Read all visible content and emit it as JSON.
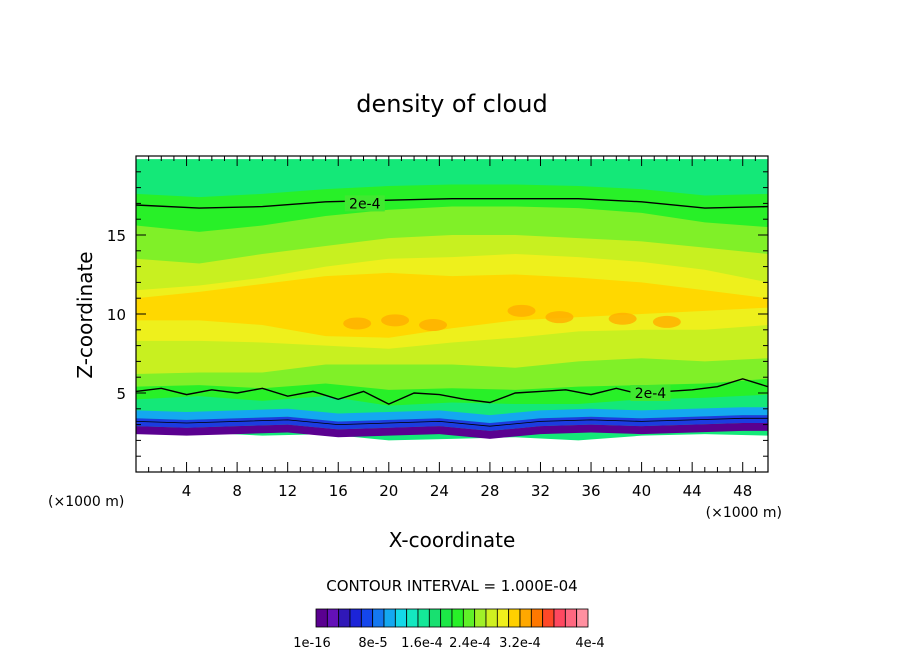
{
  "chart_data": {
    "type": "heatmap",
    "title": "density of cloud",
    "xlabel": "X-coordinate",
    "ylabel": "Z-coordinate",
    "x_unit_label_left": "(×1000 m)",
    "x_unit_label_right": "(×1000 m)",
    "xlim": [
      0,
      50
    ],
    "ylim": [
      0,
      20
    ],
    "x_ticks": [
      4,
      8,
      12,
      16,
      20,
      24,
      28,
      32,
      36,
      40,
      44,
      48
    ],
    "y_ticks": [
      5,
      10,
      15
    ],
    "contour_interval_text": "CONTOUR INTERVAL = 1.000E-04",
    "colorbar_labels": [
      "1e-16",
      "8e-5",
      "1.6e-4",
      "2.4e-4",
      "3.2e-4",
      "4e-4"
    ],
    "colorbar_colors": [
      "#5a0090",
      "#6410b8",
      "#3018b8",
      "#1c24d8",
      "#1446ec",
      "#1478f0",
      "#14a8f0",
      "#14d8e8",
      "#14e8c0",
      "#14e898",
      "#18e070",
      "#1ce846",
      "#28f028",
      "#60f028",
      "#a0f028",
      "#d0f020",
      "#f0f01c",
      "#ffd000",
      "#ffa800",
      "#ff7800",
      "#ff4828",
      "#ff4860",
      "#ff6880",
      "#ff90a0"
    ],
    "contour_labels": [
      {
        "text": "2e-4",
        "x": 18.1,
        "z": 17.0
      },
      {
        "text": "2e-4",
        "x": 40.7,
        "z": 5.0
      }
    ],
    "contour_lines": [
      {
        "name": "upper-2e-4",
        "x": [
          0,
          5,
          10,
          15,
          20,
          25,
          30,
          35,
          40,
          45,
          50
        ],
        "z": [
          16.9,
          16.7,
          16.8,
          17.1,
          17.2,
          17.3,
          17.3,
          17.3,
          17.1,
          16.7,
          16.8
        ]
      },
      {
        "name": "lower-2e-4",
        "x": [
          0,
          2,
          4,
          6,
          8,
          10,
          12,
          14,
          16,
          18,
          20,
          22,
          24,
          26,
          28,
          30,
          32,
          34,
          36,
          38,
          40,
          42,
          44,
          46,
          48,
          50
        ],
        "z": [
          5.1,
          5.3,
          4.9,
          5.2,
          5.0,
          5.3,
          4.8,
          5.1,
          4.6,
          5.1,
          4.3,
          5.0,
          4.9,
          4.6,
          4.4,
          5.0,
          5.1,
          5.2,
          4.9,
          5.3,
          4.9,
          5.1,
          5.2,
          5.4,
          5.9,
          5.4
        ]
      },
      {
        "name": "base-contour",
        "x": [
          0,
          4,
          8,
          12,
          16,
          20,
          24,
          28,
          32,
          36,
          40,
          44,
          48,
          50
        ],
        "z": [
          3.2,
          3.1,
          3.2,
          3.3,
          3.0,
          3.1,
          3.2,
          2.9,
          3.2,
          3.3,
          3.2,
          3.3,
          3.4,
          3.4
        ]
      }
    ],
    "cloud_layers": [
      {
        "color": "#14e878",
        "top": [
          19.8,
          19.8,
          19.8,
          19.8,
          19.8,
          19.8,
          19.8,
          19.8,
          19.8,
          19.8,
          19.8
        ],
        "bottom": [
          2.4,
          2.5,
          2.3,
          2.4,
          2.0,
          2.1,
          2.2,
          2.0,
          2.3,
          2.4,
          2.3
        ]
      },
      {
        "color": "#28f028",
        "top": [
          17.6,
          17.4,
          17.6,
          17.9,
          18.1,
          18.2,
          18.2,
          18.1,
          17.9,
          17.5,
          17.6
        ],
        "bottom": [
          4.6,
          4.8,
          4.5,
          4.8,
          4.2,
          4.4,
          4.3,
          4.3,
          4.6,
          4.7,
          4.9
        ]
      },
      {
        "color": "#80f028",
        "top": [
          15.6,
          15.2,
          15.6,
          16.2,
          16.6,
          16.8,
          16.8,
          16.7,
          16.4,
          15.8,
          15.5
        ],
        "bottom": [
          5.4,
          5.5,
          5.3,
          5.6,
          5.2,
          5.3,
          5.2,
          5.4,
          5.5,
          5.6,
          5.9
        ]
      },
      {
        "color": "#c8f020",
        "top": [
          13.5,
          13.2,
          13.8,
          14.3,
          14.8,
          15.0,
          15.0,
          14.8,
          14.6,
          14.2,
          13.8
        ],
        "bottom": [
          6.2,
          6.3,
          6.3,
          6.8,
          6.8,
          6.8,
          6.6,
          7.0,
          7.2,
          7.0,
          7.2
        ]
      },
      {
        "color": "#eef01c",
        "top": [
          11.5,
          11.8,
          12.3,
          13.0,
          13.5,
          13.6,
          13.8,
          13.6,
          13.3,
          12.8,
          12.0
        ],
        "bottom": [
          8.3,
          8.3,
          8.2,
          8.0,
          7.8,
          8.2,
          8.5,
          8.9,
          9.0,
          9.0,
          9.3
        ]
      },
      {
        "color": "#ffd800",
        "top": [
          11.0,
          11.4,
          11.9,
          12.4,
          12.6,
          12.4,
          12.5,
          12.3,
          12.0,
          11.5,
          11.0
        ],
        "bottom": [
          9.6,
          9.6,
          9.3,
          8.6,
          8.5,
          9.1,
          9.6,
          9.8,
          10.0,
          10.2,
          10.4
        ]
      }
    ],
    "cloud_base_bands": [
      {
        "color": "#14a8f0",
        "z_top": 3.9,
        "z_bottom": 3.4
      },
      {
        "color": "#1c3ce0",
        "z_top": 3.4,
        "z_bottom": 2.9
      },
      {
        "color": "#5a0090",
        "z_top": 2.9,
        "z_bottom": 2.4
      }
    ],
    "orange_patches": [
      {
        "x": 17.5,
        "z": 9.4
      },
      {
        "x": 20.5,
        "z": 9.6
      },
      {
        "x": 23.5,
        "z": 9.3
      },
      {
        "x": 30.5,
        "z": 10.2
      },
      {
        "x": 33.5,
        "z": 9.8
      },
      {
        "x": 38.5,
        "z": 9.7
      },
      {
        "x": 42.0,
        "z": 9.5
      }
    ]
  }
}
